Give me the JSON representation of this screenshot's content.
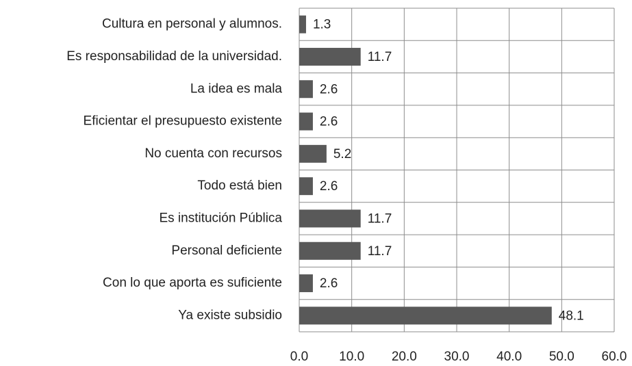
{
  "chart_data": {
    "type": "bar",
    "orientation": "horizontal",
    "categories": [
      "Cultura en personal y alumnos.",
      "Es responsabilidad de la universidad.",
      "La idea es mala",
      "Eficientar el presupuesto existente",
      "No cuenta con recursos",
      "Todo está bien",
      "Es institución Pública",
      "Personal deficiente",
      "Con lo que aporta es suficiente",
      "Ya existe subsidio"
    ],
    "values": [
      1.3,
      11.7,
      2.6,
      2.6,
      5.2,
      2.6,
      11.7,
      11.7,
      2.6,
      48.1
    ],
    "color": "#595959",
    "xlim": [
      0,
      60
    ],
    "xticks": [
      {
        "value": 0,
        "label": "0.0"
      },
      {
        "value": 10,
        "label": "10.0"
      },
      {
        "value": 20,
        "label": "20.0"
      },
      {
        "value": 30,
        "label": "30.0"
      },
      {
        "value": 40,
        "label": "40.0"
      },
      {
        "value": 50,
        "label": "50.0"
      },
      {
        "value": 60,
        "label": "60.0"
      }
    ],
    "grid": true
  }
}
